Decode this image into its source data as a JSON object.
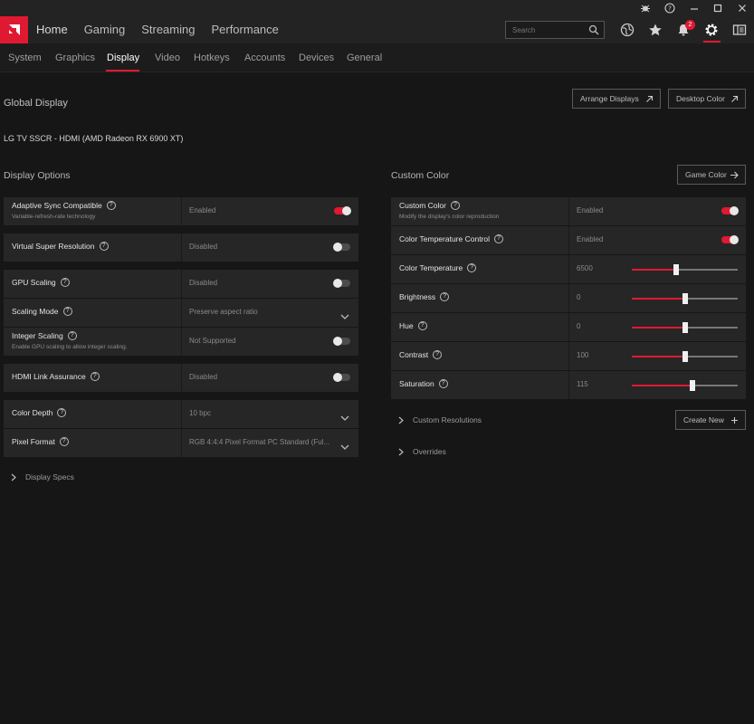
{
  "topnav": {
    "items": [
      "Home",
      "Gaming",
      "Streaming",
      "Performance"
    ]
  },
  "search": {
    "placeholder": "Search"
  },
  "notifications": {
    "count": "2"
  },
  "subnav": {
    "items": [
      "System",
      "Graphics",
      "Display",
      "Video",
      "Hotkeys",
      "Accounts",
      "Devices",
      "General"
    ],
    "active": "Display"
  },
  "global": {
    "title": "Global Display",
    "monitor": "LG TV SSCR - HDMI (AMD Radeon RX 6900 XT)",
    "arrange_label": "Arrange Displays",
    "desktop_color_label": "Desktop Color"
  },
  "display_options": {
    "title": "Display Options",
    "rows": [
      {
        "label": "Adaptive Sync Compatible",
        "sub": "Variable-refresh-rate technology",
        "value": "Enabled",
        "control": "toggle",
        "on": true
      },
      {
        "label": "Virtual Super Resolution",
        "value": "Disabled",
        "control": "toggle",
        "on": false
      },
      {
        "label": "GPU Scaling",
        "value": "Disabled",
        "control": "toggle",
        "on": false
      },
      {
        "label": "Scaling Mode",
        "value": "Preserve aspect ratio",
        "control": "dropdown"
      },
      {
        "label": "Integer Scaling",
        "sub": "Enable GPU scaling to allow integer scaling.",
        "value": "Not Supported",
        "control": "toggle",
        "on": false
      },
      {
        "label": "HDMI Link Assurance",
        "value": "Disabled",
        "control": "toggle",
        "on": false
      },
      {
        "label": "Color Depth",
        "value": "10 bpc",
        "control": "dropdown"
      },
      {
        "label": "Pixel Format",
        "value": "RGB 4:4:4 Pixel Format PC Standard (Ful...",
        "control": "dropdown"
      }
    ],
    "specs_label": "Display Specs"
  },
  "custom_color": {
    "title": "Custom Color",
    "game_color_label": "Game Color",
    "rows": [
      {
        "label": "Custom Color",
        "sub": "Modify the display's color reproduction",
        "value": "Enabled",
        "control": "toggle",
        "on": true
      },
      {
        "label": "Color Temperature Control",
        "value": "Enabled",
        "control": "toggle",
        "on": true
      },
      {
        "label": "Color Temperature",
        "value": "6500",
        "control": "slider",
        "level": 0.42
      },
      {
        "label": "Brightness",
        "value": "0",
        "control": "slider",
        "level": 0.5
      },
      {
        "label": "Hue",
        "value": "0",
        "control": "slider",
        "level": 0.5
      },
      {
        "label": "Contrast",
        "value": "100",
        "control": "slider",
        "level": 0.5
      },
      {
        "label": "Saturation",
        "value": "115",
        "control": "slider",
        "level": 0.57
      }
    ],
    "custom_resolutions_label": "Custom Resolutions",
    "create_new_label": "Create New",
    "overrides_label": "Overrides"
  },
  "colors": {
    "accent": "#e01932",
    "row_bg": "#262626",
    "page_bg": "#161616"
  }
}
